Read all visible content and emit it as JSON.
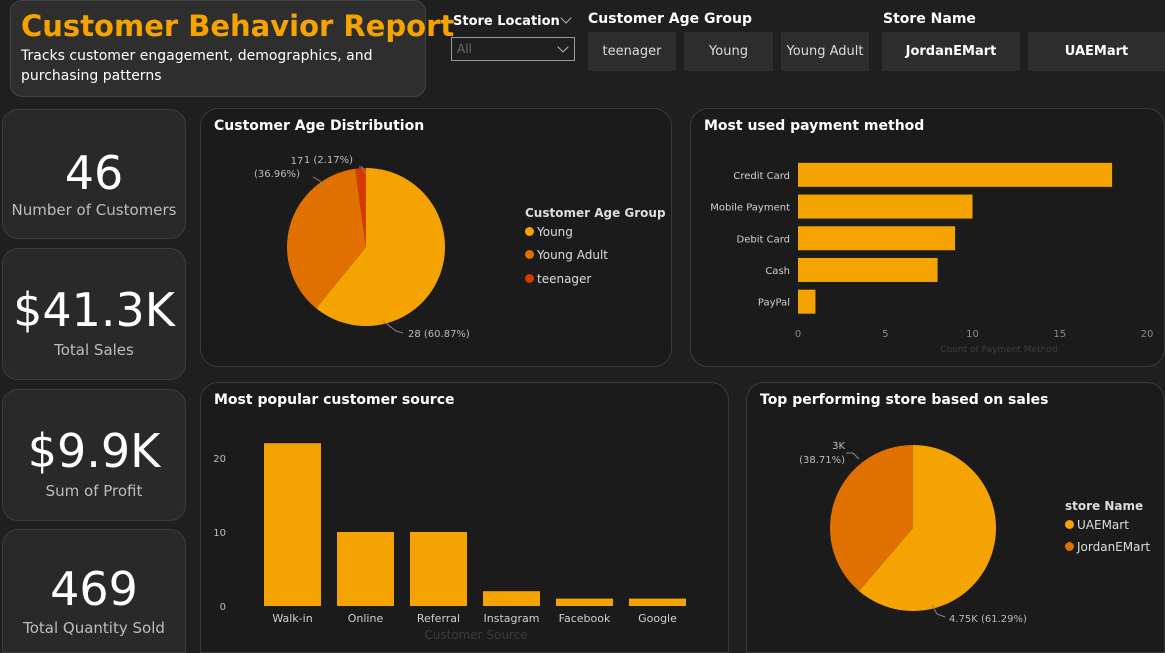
{
  "header": {
    "title": "Customer Behavior Report",
    "subtitle": "Tracks customer engagement, demographics, and purchasing patterns"
  },
  "slicers": {
    "store_location": {
      "title": "Store Location",
      "value": "All"
    },
    "age_group": {
      "title": "Customer Age Group",
      "options": [
        "teenager",
        "Young",
        "Young Adult"
      ]
    },
    "store_name": {
      "title": "Store Name",
      "options": [
        "JordanEMart",
        "UAEMart"
      ]
    }
  },
  "kpis": {
    "customers": {
      "value": "46",
      "label": "Number of Customers"
    },
    "sales": {
      "value": "$41.3K",
      "label": "Total Sales"
    },
    "profit": {
      "value": "$9.9K",
      "label": "Sum of Profit"
    },
    "quantity": {
      "value": "469",
      "label": "Total Quantity Sold"
    }
  },
  "colors": {
    "accent": "#f5a300",
    "orange": "#e07000",
    "red": "#d63a00"
  },
  "chart_data": [
    {
      "type": "pie",
      "title": "Customer Age Distribution",
      "legend_title": "Customer Age Group",
      "slices": [
        {
          "name": "Young",
          "value": 28,
          "label": "28 (60.87%)",
          "color": "#f5a300"
        },
        {
          "name": "Young Adult",
          "value": 17,
          "label_line1": "17",
          "label_line2": "(36.96%)",
          "color": "#e07000"
        },
        {
          "name": "teenager",
          "value": 1,
          "label": "1 (2.17%)",
          "color": "#d63a00"
        }
      ]
    },
    {
      "type": "bar",
      "orientation": "horizontal",
      "title": "Most used payment method",
      "categories": [
        "Credit Card",
        "Mobile Payment",
        "Debit Card",
        "Cash",
        "PayPal"
      ],
      "values": [
        18,
        10,
        9,
        8,
        1
      ],
      "xlim": [
        0,
        20
      ],
      "ticks": [
        "0",
        "5",
        "10",
        "15",
        "20"
      ],
      "xlabel": "Count of Payment Method"
    },
    {
      "type": "bar",
      "title": "Most popular customer source",
      "categories": [
        "Walk-in",
        "Online",
        "Referral",
        "Instagram",
        "Facebook",
        "Google"
      ],
      "values": [
        22,
        10,
        10,
        2,
        1,
        1
      ],
      "ylim": [
        0,
        25
      ],
      "ticks": [
        "0",
        "10",
        "20"
      ],
      "xlabel": "Customer Source"
    },
    {
      "type": "pie",
      "title": "Top performing store based on sales",
      "legend_title": "store Name",
      "slices": [
        {
          "name": "UAEMart",
          "value": 4.75,
          "label": "4.75K (61.29%)",
          "color": "#f5a300"
        },
        {
          "name": "JordanEMart",
          "value": 3,
          "label_line1": "3K",
          "label_line2": "(38.71%)",
          "color": "#e07000"
        }
      ]
    }
  ]
}
